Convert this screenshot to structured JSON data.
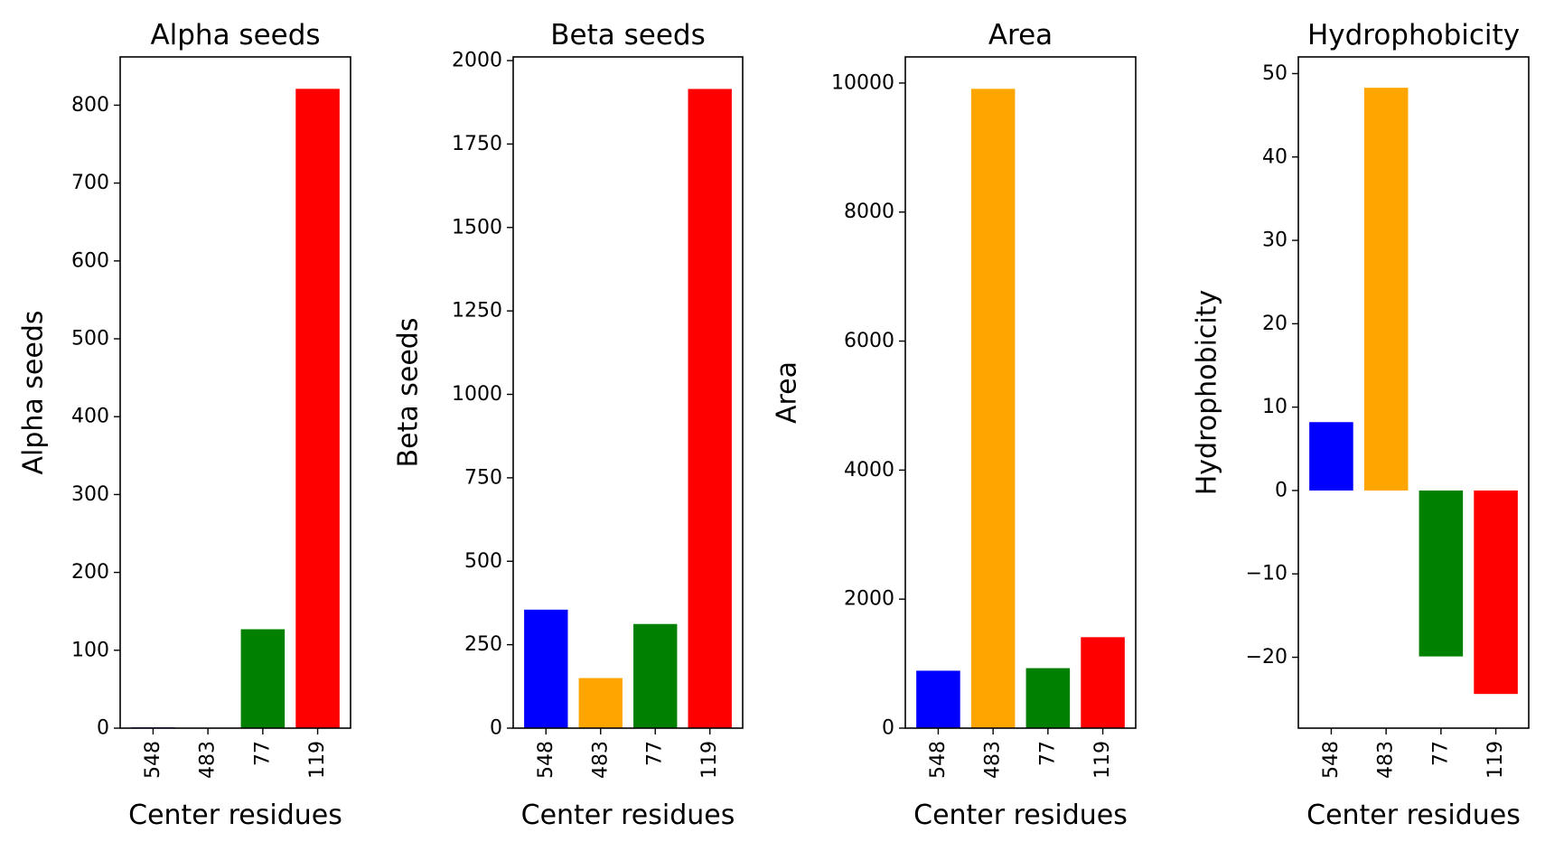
{
  "chart_data": [
    {
      "type": "bar",
      "title": "Alpha seeds",
      "xlabel": "Center residues",
      "ylabel": "Alpha seeds",
      "categories": [
        "548",
        "483",
        "77",
        "119"
      ],
      "values": [
        1,
        0,
        127,
        821
      ],
      "colors": [
        "#0000ff",
        "#ffa500",
        "#008000",
        "#ff0000"
      ],
      "ylim": [
        0,
        862
      ],
      "yticks": [
        0,
        100,
        200,
        300,
        400,
        500,
        600,
        700,
        800
      ],
      "ytick_labels": [
        "0",
        "100",
        "200",
        "300",
        "400",
        "500",
        "600",
        "700",
        "800"
      ],
      "grid": false
    },
    {
      "type": "bar",
      "title": "Beta seeds",
      "xlabel": "Center residues",
      "ylabel": "Beta seeds",
      "categories": [
        "548",
        "483",
        "77",
        "119"
      ],
      "values": [
        355,
        150,
        312,
        1915
      ],
      "colors": [
        "#0000ff",
        "#ffa500",
        "#008000",
        "#ff0000"
      ],
      "ylim": [
        0,
        2011
      ],
      "yticks": [
        0,
        250,
        500,
        750,
        1000,
        1250,
        1500,
        1750,
        2000
      ],
      "ytick_labels": [
        "0",
        "250",
        "500",
        "750",
        "1000",
        "1250",
        "1500",
        "1750",
        "2000"
      ],
      "grid": false
    },
    {
      "type": "bar",
      "title": "Area",
      "xlabel": "Center residues",
      "ylabel": "Area",
      "categories": [
        "548",
        "483",
        "77",
        "119"
      ],
      "values": [
        890,
        9910,
        930,
        1410
      ],
      "colors": [
        "#0000ff",
        "#ffa500",
        "#008000",
        "#ff0000"
      ],
      "ylim": [
        0,
        10405
      ],
      "yticks": [
        0,
        2000,
        4000,
        6000,
        8000,
        10000
      ],
      "ytick_labels": [
        "0",
        "2000",
        "4000",
        "6000",
        "8000",
        "10000"
      ],
      "grid": false
    },
    {
      "type": "bar",
      "title": "Hydrophobicity",
      "xlabel": "Center residues",
      "ylabel": "Hydrophobicity",
      "categories": [
        "548",
        "483",
        "77",
        "119"
      ],
      "values": [
        8.2,
        48.3,
        -19.9,
        -24.4
      ],
      "colors": [
        "#0000ff",
        "#ffa500",
        "#008000",
        "#ff0000"
      ],
      "ylim": [
        -28.5,
        52.0
      ],
      "yticks": [
        -20,
        -10,
        0,
        10,
        20,
        30,
        40,
        50
      ],
      "ytick_labels": [
        "−20",
        "−10",
        "0",
        "10",
        "20",
        "30",
        "40",
        "50"
      ],
      "grid": false
    }
  ]
}
